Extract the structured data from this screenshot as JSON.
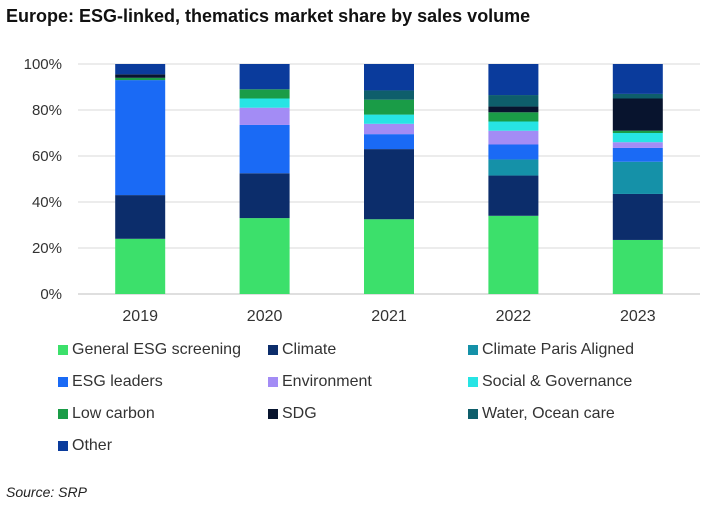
{
  "title": "Europe: ESG-linked, thematics market share by sales volume",
  "source": "Source: SRP",
  "chart_data": {
    "type": "bar",
    "stacked": true,
    "categories": [
      "2019",
      "2020",
      "2021",
      "2022",
      "2023"
    ],
    "y_ticks": [
      "0%",
      "20%",
      "40%",
      "60%",
      "80%",
      "100%"
    ],
    "ylim": [
      0,
      100
    ],
    "grid": true,
    "legend_position": "bottom",
    "series": [
      {
        "name": "General ESG screening",
        "color": "#3ce06b",
        "values": [
          24,
          33,
          32.5,
          34,
          23.5
        ]
      },
      {
        "name": "Climate",
        "color": "#0c2d6b",
        "values": [
          19,
          19.5,
          30.5,
          17.5,
          20
        ]
      },
      {
        "name": "Climate Paris Aligned",
        "color": "#1591a8",
        "values": [
          0,
          0,
          0,
          7,
          14
        ]
      },
      {
        "name": "ESG leaders",
        "color": "#1a6af5",
        "values": [
          50,
          21,
          6.5,
          6.5,
          6
        ]
      },
      {
        "name": "Environment",
        "color": "#a38cf5",
        "values": [
          0,
          7.5,
          4.5,
          6,
          2.5
        ]
      },
      {
        "name": "Social & Governance",
        "color": "#27e4e4",
        "values": [
          0,
          4,
          4,
          4,
          4
        ]
      },
      {
        "name": "Low carbon",
        "color": "#1a9c47",
        "values": [
          1,
          4,
          6.5,
          4,
          1
        ]
      },
      {
        "name": "SDG",
        "color": "#08142e",
        "values": [
          1.5,
          0,
          0,
          2.5,
          14
        ]
      },
      {
        "name": "Water, Ocean care",
        "color": "#0e5e6b",
        "values": [
          0,
          0,
          4,
          5,
          2
        ]
      },
      {
        "name": "Other",
        "color": "#0a3b9c",
        "values": [
          4.5,
          11,
          11.5,
          13.5,
          13
        ]
      }
    ]
  }
}
